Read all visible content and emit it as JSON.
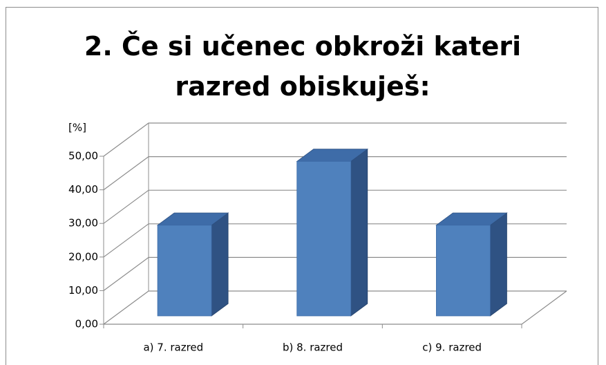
{
  "chart_data": {
    "type": "bar3d",
    "title": "2. Če si učenec obkroži kateri razred obiskuješ:",
    "y_label": "[%]",
    "categories": [
      "a) 7. razred",
      "b) 8. razred",
      "c) 9. razred"
    ],
    "values": [
      27,
      46,
      27
    ],
    "color": "#4f81bd",
    "ylim": [
      0,
      50
    ],
    "yticks": [
      {
        "value": 0,
        "label": "0,00"
      },
      {
        "value": 10,
        "label": "10,00"
      },
      {
        "value": 20,
        "label": "20,00"
      },
      {
        "value": 30,
        "label": "30,00"
      },
      {
        "value": 40,
        "label": "40,00"
      },
      {
        "value": 50,
        "label": "50,00"
      }
    ],
    "grid": true
  }
}
